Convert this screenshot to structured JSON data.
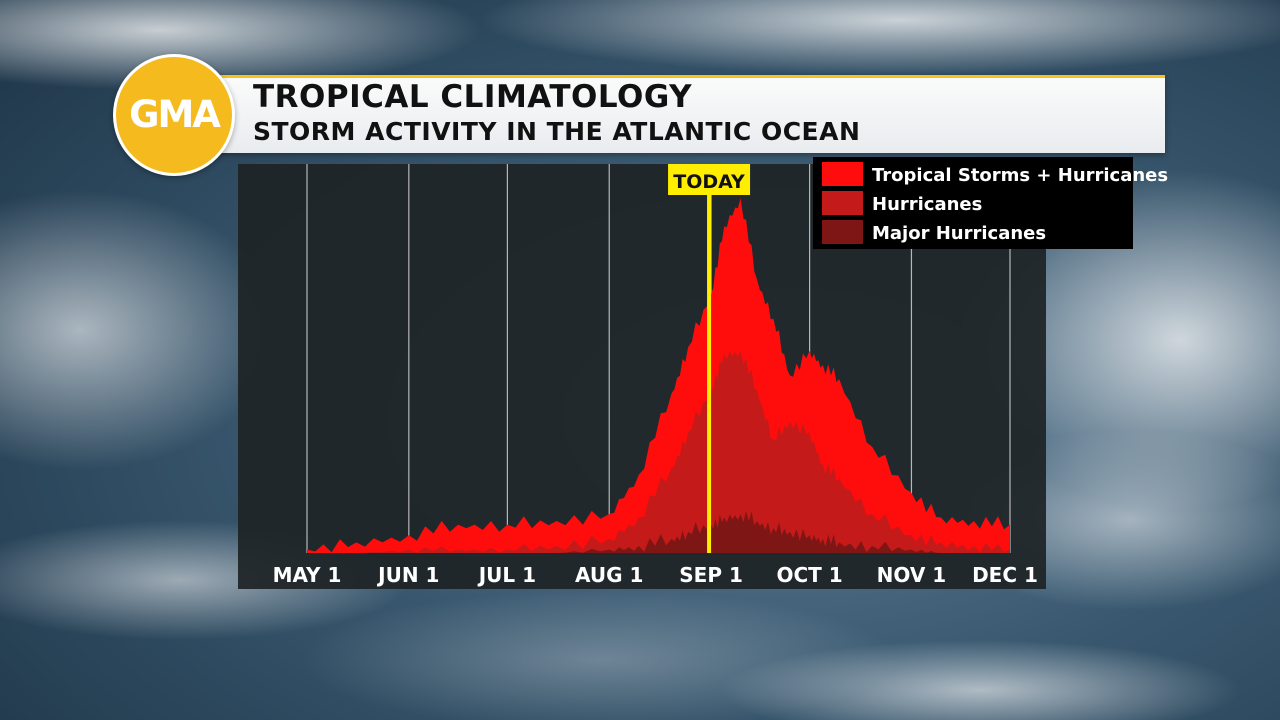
{
  "broadcast": {
    "logo_text": "GMA",
    "title": "TROPICAL CLIMATOLOGY",
    "subtitle": "STORM ACTIVITY IN THE ATLANTIC OCEAN",
    "accent_color": "#f6c21b"
  },
  "chart_data": {
    "type": "area",
    "title": "TROPICAL CLIMATOLOGY",
    "subtitle": "STORM ACTIVITY IN THE ATLANTIC OCEAN",
    "xlabel": "",
    "ylabel": "",
    "x_ticks": [
      "MAY 1",
      "JUN 1",
      "JUL 1",
      "AUG 1",
      "SEP 1",
      "OCT 1",
      "NOV 1",
      "DEC 1"
    ],
    "x_range": [
      "MAY 1",
      "DEC 1"
    ],
    "y_axis_shown": false,
    "grid": "vertical lines at month starts",
    "legend_position": "top-right",
    "marker": {
      "label": "TODAY",
      "x": "SEP 1",
      "color": "#ffee00"
    },
    "x": [
      "MAY 1",
      "MAY 16",
      "JUN 1",
      "JUN 16",
      "JUL 1",
      "JUL 16",
      "AUG 1",
      "AUG 10",
      "AUG 20",
      "AUG 25",
      "SEP 1",
      "SEP 5",
      "SEP 10",
      "SEP 15",
      "SEP 20",
      "SEP 25",
      "OCT 1",
      "OCT 5",
      "OCT 10",
      "OCT 20",
      "NOV 1",
      "NOV 10",
      "NOV 20",
      "DEC 1"
    ],
    "series": [
      {
        "name": "Tropical Storms + Hurricanes",
        "color": "#ff0d0d",
        "values": [
          1,
          3,
          5,
          8,
          8,
          9,
          11,
          22,
          45,
          58,
          73,
          92,
          100,
          77,
          66,
          50,
          57,
          53,
          49,
          30,
          17,
          10,
          9,
          8
        ]
      },
      {
        "name": "Hurricanes",
        "color": "#c41a1a",
        "values": [
          0,
          0,
          1,
          1,
          1,
          2,
          4,
          10,
          24,
          34,
          46,
          56,
          57,
          46,
          32,
          37,
          34,
          25,
          21,
          11,
          5,
          3,
          2,
          1
        ]
      },
      {
        "name": "Major Hurricanes",
        "color": "#7e1616",
        "values": [
          0,
          0,
          0,
          0,
          0,
          0,
          1,
          2,
          4,
          6,
          8,
          10,
          11,
          9,
          7,
          6,
          5,
          4,
          3,
          2,
          1,
          0,
          0,
          0
        ]
      }
    ]
  }
}
